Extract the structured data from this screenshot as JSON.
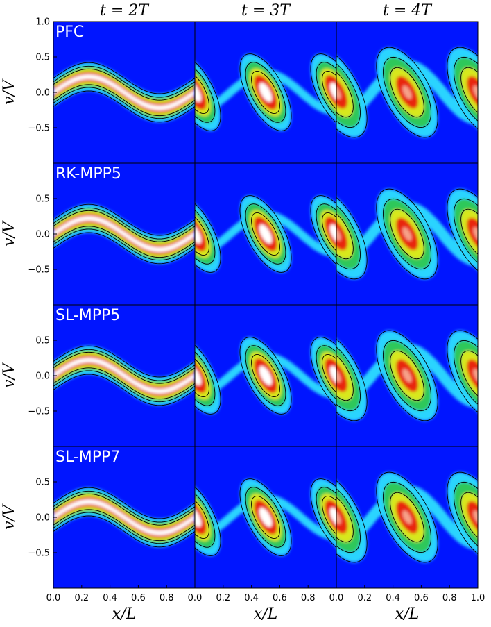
{
  "chart_data": {
    "type": "heatmap",
    "colormap": "jet (blue → cyan → green → yellow → red → white), black contour lines",
    "grid": false,
    "columns": [
      "t = 2T",
      "t = 3T",
      "t = 4T"
    ],
    "rows": [
      "PFC",
      "RK-MPP5",
      "SL-MPP5",
      "SL-MPP7"
    ],
    "xlabel": "x/L",
    "ylabel": "v/V",
    "xlim": [
      0.0,
      1.0
    ],
    "ylim": [
      -1.0,
      1.0
    ],
    "x_ticks": [
      "0.0",
      "0.2",
      "0.4",
      "0.6",
      "0.8",
      "1.0"
    ],
    "x_ticks_inner": [
      "0.0",
      "0.2",
      "0.4",
      "0.6",
      "0.8"
    ],
    "y_ticks_top_row": [
      "1.0",
      "0.5",
      "0.0",
      "−0.5"
    ],
    "y_ticks_other_rows": [
      "0.5",
      "0.0",
      "−0.5"
    ],
    "y_tick_values_top_row": [
      1.0,
      0.5,
      0.0,
      -0.5
    ],
    "y_tick_values_other_rows": [
      0.5,
      0.0,
      -0.5
    ],
    "x_tick_values": [
      0.0,
      0.2,
      0.4,
      0.6,
      0.8,
      1.0
    ],
    "panels": {
      "t2": {
        "kind": "filament",
        "amplitude_v": 0.22,
        "core": "white"
      },
      "t3": {
        "kind": "vortex",
        "amplitude_v": 0.32,
        "core": "red-white"
      },
      "t4": {
        "kind": "vortex",
        "amplitude_v": 0.45,
        "core": "yellow-red"
      }
    },
    "colors": {
      "background": "#0015ff",
      "cyan": "#2ad4ff",
      "green": "#2fc85a",
      "yellow": "#d8e81a",
      "red": "#e8250f",
      "white": "#ffffff",
      "contour": "#000000"
    }
  }
}
